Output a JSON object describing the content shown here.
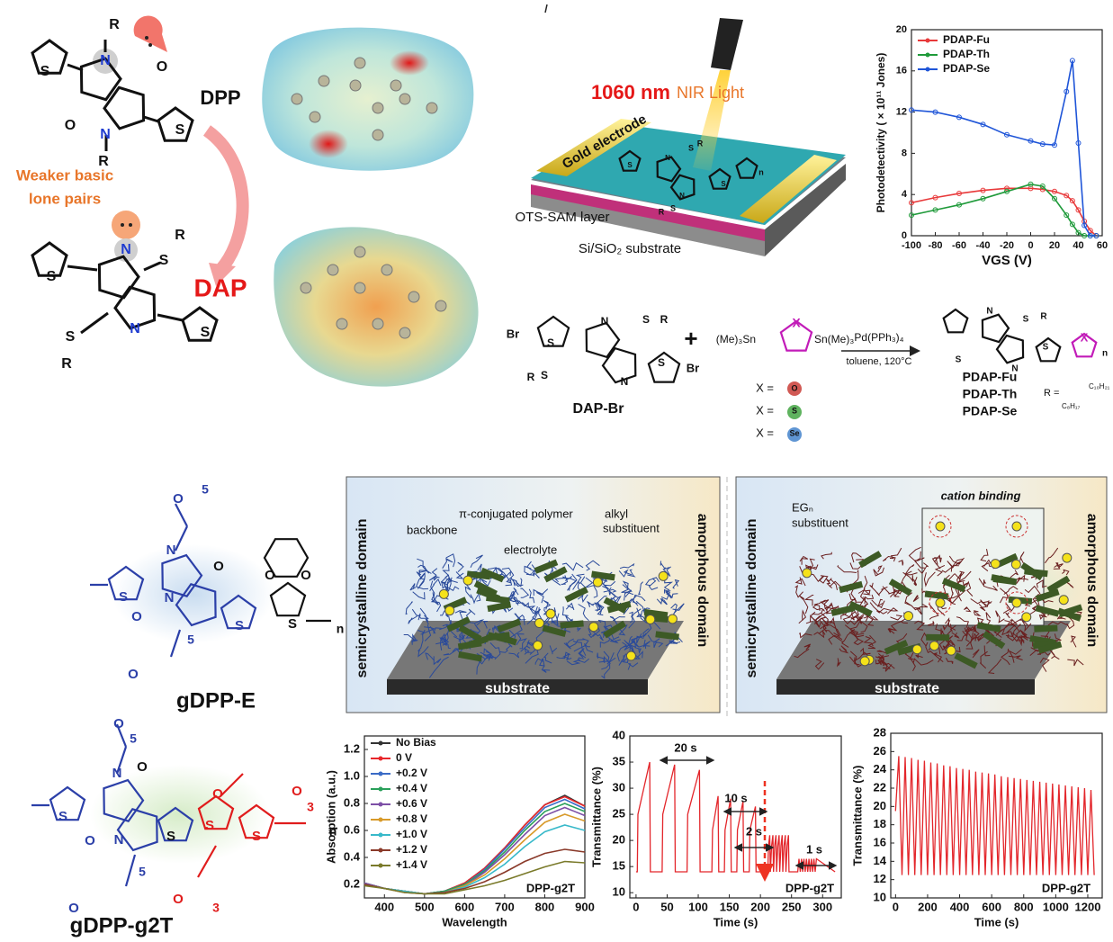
{
  "top": {
    "dpp": {
      "label": "DPP",
      "atoms": [
        "R",
        "N",
        "O",
        "O",
        "N",
        "R",
        "S",
        "S"
      ]
    },
    "dap": {
      "label": "DAP",
      "atoms": [
        "N",
        "S",
        "R",
        "S",
        "R",
        "N",
        "S",
        "S"
      ]
    },
    "lone_pairs": [
      "Weaker basic",
      "lone pairs"
    ],
    "device": {
      "light_nm": "1060 nm",
      "light_type": "NIR Light",
      "electrode": "Gold electrode",
      "layer": "OTS-SAM layer",
      "substrate": "Si/SiO₂ substrate",
      "atoms": [
        "S",
        "R",
        "N",
        "N",
        "S",
        "R",
        "S",
        "S",
        "n"
      ]
    }
  },
  "synthesis": {
    "monomer": {
      "label": "DAP-Br",
      "atoms": [
        "Br",
        "S",
        "N",
        "S",
        "R",
        "S",
        "R",
        "N",
        "S",
        "Br"
      ]
    },
    "plus": "+",
    "stannane": {
      "left": "(Me)₃Sn",
      "right": "Sn(Me)₃",
      "x": "X"
    },
    "x_options": [
      {
        "label": "X =",
        "atom": "O"
      },
      {
        "label": "X =",
        "atom": "S"
      },
      {
        "label": "X =",
        "atom": "Se"
      }
    ],
    "catalyst": "Pd(PPh₃)₄",
    "conditions": "toluene, 120°C",
    "product": {
      "atoms": [
        "N",
        "S",
        "R",
        "S",
        "N",
        "S",
        "X",
        "n"
      ],
      "names": [
        "PDAP-Fu",
        "PDAP-Th",
        "PDAP-Se"
      ],
      "r_label": "R =",
      "r_groups": [
        "C₁₀H₂₁",
        "C₈H₁₇"
      ]
    }
  },
  "polymers": {
    "gdpp_e": {
      "label": "gDPP-E",
      "atoms": [
        "O",
        "5",
        "N",
        "O",
        "O",
        "N",
        "5",
        "O",
        "S",
        "S",
        "O",
        "O",
        "S",
        "n"
      ]
    },
    "gdpp_g2t": {
      "label": "gDPP-g2T",
      "atoms": [
        "O",
        "5",
        "N",
        "O",
        "O",
        "N",
        "5",
        "O",
        "S",
        "S",
        "O",
        "O",
        "3",
        "S",
        "O",
        "3",
        "S",
        "n"
      ]
    }
  },
  "morphology": [
    {
      "left": "semicrystalline domain",
      "right": "amorphous domain",
      "substrate": "substrate",
      "labels": [
        "π-conjugated polymer",
        "backbone",
        "electrolyte",
        "alkyl",
        "substituent"
      ]
    },
    {
      "left": "semicrystalline domain",
      "right": "amorphous domain",
      "substrate": "substrate",
      "labels": [
        "EGₙ",
        "substituent",
        "cation binding"
      ]
    }
  ],
  "chart_data": [
    {
      "type": "line",
      "xlabel": "VGS (V)",
      "ylabel": "Photodetectivity ( × 10¹¹ Jones)",
      "x": [
        -100,
        -80,
        -60,
        -40,
        -20,
        0,
        10,
        20,
        30,
        35,
        40,
        45,
        50,
        55
      ],
      "series": [
        {
          "name": "PDAP-Fu",
          "color": "#e8393a",
          "values": [
            3.2,
            3.7,
            4.1,
            4.4,
            4.6,
            4.6,
            4.5,
            4.3,
            3.9,
            3.4,
            2.5,
            1.4,
            0.5,
            0
          ]
        },
        {
          "name": "PDAP-Th",
          "color": "#1f9a3a",
          "values": [
            2.0,
            2.5,
            3.0,
            3.6,
            4.3,
            5.0,
            4.8,
            3.6,
            2.0,
            1.1,
            0.3,
            0,
            0,
            0
          ]
        },
        {
          "name": "PDAP-Se",
          "color": "#1f55d8",
          "values": [
            12.2,
            12.0,
            11.5,
            10.8,
            9.8,
            9.2,
            8.9,
            8.8,
            14,
            17,
            9,
            1,
            0,
            0
          ]
        }
      ],
      "xlim": [
        -100,
        60
      ],
      "ylim": [
        0,
        20
      ],
      "xticks": [
        -100,
        -80,
        -60,
        -40,
        -20,
        0,
        20,
        40,
        60
      ],
      "yticks": [
        0,
        4,
        8,
        12,
        16,
        20
      ],
      "markers": true,
      "legend": "upper left"
    },
    {
      "type": "line",
      "xlabel": "Wavelength",
      "ylabel": "Absorption (a.u.)",
      "annotations": [
        "DPP-g2T"
      ],
      "x": [
        350,
        400,
        450,
        500,
        550,
        600,
        650,
        700,
        750,
        800,
        850,
        900
      ],
      "series": [
        {
          "name": "No Bias",
          "color": "#333333",
          "values": [
            0.21,
            0.17,
            0.15,
            0.13,
            0.15,
            0.21,
            0.32,
            0.47,
            0.64,
            0.79,
            0.86,
            0.78
          ]
        },
        {
          "name": "0 V",
          "color": "#e8262a",
          "values": [
            0.21,
            0.17,
            0.15,
            0.13,
            0.15,
            0.21,
            0.32,
            0.47,
            0.64,
            0.79,
            0.85,
            0.78
          ]
        },
        {
          "name": "+0.2 V",
          "color": "#3a6bc6",
          "values": [
            0.21,
            0.17,
            0.15,
            0.13,
            0.15,
            0.2,
            0.31,
            0.46,
            0.62,
            0.77,
            0.83,
            0.76
          ]
        },
        {
          "name": "+0.4 V",
          "color": "#2aa05a",
          "values": [
            0.21,
            0.17,
            0.15,
            0.13,
            0.15,
            0.2,
            0.3,
            0.44,
            0.6,
            0.74,
            0.8,
            0.74
          ]
        },
        {
          "name": "+0.6 V",
          "color": "#7d4fa6",
          "values": [
            0.21,
            0.17,
            0.15,
            0.13,
            0.14,
            0.19,
            0.29,
            0.42,
            0.57,
            0.71,
            0.77,
            0.71
          ]
        },
        {
          "name": "+0.8 V",
          "color": "#d89a2a",
          "values": [
            0.2,
            0.17,
            0.15,
            0.13,
            0.14,
            0.19,
            0.27,
            0.39,
            0.53,
            0.66,
            0.72,
            0.67
          ]
        },
        {
          "name": "+1.0 V",
          "color": "#38b9c9",
          "values": [
            0.2,
            0.17,
            0.15,
            0.13,
            0.14,
            0.18,
            0.25,
            0.35,
            0.48,
            0.59,
            0.64,
            0.6
          ]
        },
        {
          "name": "+1.2 V",
          "color": "#8a3a2a",
          "values": [
            0.2,
            0.17,
            0.14,
            0.13,
            0.14,
            0.17,
            0.22,
            0.29,
            0.37,
            0.43,
            0.46,
            0.44
          ]
        },
        {
          "name": "+1.4 V",
          "color": "#7a7a2a",
          "values": [
            0.19,
            0.17,
            0.14,
            0.13,
            0.13,
            0.16,
            0.19,
            0.23,
            0.28,
            0.33,
            0.37,
            0.36
          ]
        }
      ],
      "xlim": [
        350,
        900
      ],
      "ylim": [
        0.1,
        1.3
      ],
      "xticks": [
        400,
        500,
        600,
        700,
        800,
        900
      ],
      "yticks": [
        0.2,
        0.4,
        0.6,
        0.8,
        {
          "value": 1,
          "label": "1.0"
        },
        1.2
      ],
      "markers": false,
      "legend": "upper left"
    },
    {
      "type": "line",
      "xlabel": "Time (s)",
      "ylabel": "Transmittance (%)",
      "annotations": [
        "20 s",
        "10 s",
        "2 s",
        "1 s",
        "DPP-g2T"
      ],
      "x": [
        0,
        2,
        3,
        22,
        23,
        42,
        43,
        62,
        63,
        82,
        83,
        102,
        103,
        122,
        123,
        132,
        133,
        142,
        143,
        152,
        153,
        162,
        163,
        172,
        173,
        182,
        183,
        192,
        193,
        212,
        213,
        215,
        216,
        218,
        220,
        221,
        223,
        225,
        226,
        228,
        230,
        231,
        233,
        235,
        236,
        238,
        240,
        241,
        243,
        245,
        246,
        260,
        262,
        264,
        266,
        268,
        270,
        272,
        274,
        276,
        278,
        280,
        282,
        284,
        286,
        288,
        290,
        320
      ],
      "series": [
        {
          "name": "DPP-g2T",
          "color": "#e3262b",
          "values": [
            14,
            14,
            25,
            35,
            14,
            14,
            25,
            34.5,
            14,
            14,
            25,
            33.5,
            14,
            14,
            22,
            28.5,
            14,
            14,
            22,
            28,
            14,
            14,
            22,
            27.5,
            14,
            14,
            22,
            26.5,
            14,
            14,
            19,
            21,
            14,
            19,
            21,
            14,
            19,
            21,
            14,
            19,
            21,
            14,
            19,
            21,
            14,
            19,
            21,
            14,
            19,
            21,
            14,
            14,
            16.5,
            14,
            16.5,
            14,
            16.5,
            14,
            16.5,
            14,
            16.5,
            14,
            16.5,
            14,
            16.5,
            14,
            16.5,
            14
          ]
        }
      ],
      "xlim": [
        -10,
        330
      ],
      "ylim": [
        9,
        40
      ],
      "xticks": [
        0,
        50,
        100,
        150,
        200,
        250,
        300
      ],
      "yticks": [
        10,
        15,
        20,
        25,
        30,
        35,
        40
      ],
      "markers": false
    },
    {
      "type": "line",
      "xlabel": "Time (s)",
      "ylabel": "Transmittance (%)",
      "annotations": [
        "DPP-g2T"
      ],
      "x": [
        0,
        20,
        40,
        60,
        80,
        100,
        120,
        140,
        160,
        180,
        200,
        220,
        240,
        260,
        280,
        300,
        320,
        340,
        360,
        380,
        400,
        420,
        440,
        460,
        480,
        500,
        520,
        540,
        560,
        580,
        600,
        620,
        640,
        660,
        680,
        700,
        720,
        740,
        760,
        780,
        800,
        820,
        840,
        860,
        880,
        900,
        920,
        940,
        960,
        980,
        1000,
        1020,
        1040,
        1060,
        1080,
        1100,
        1120,
        1140,
        1160,
        1180,
        1200,
        1220,
        1240
      ],
      "series": [
        {
          "name": "DPP-g2T",
          "color": "#e3262b",
          "values": [
            19.5,
            25.5,
            12.5,
            25.4,
            12.5,
            25.3,
            12.5,
            25.1,
            12.5,
            25.0,
            12.5,
            24.8,
            12.5,
            24.7,
            12.5,
            24.5,
            12.5,
            24.4,
            12.5,
            24.2,
            12.5,
            24.1,
            12.5,
            24.0,
            12.5,
            23.8,
            12.5,
            23.7,
            12.5,
            23.6,
            12.5,
            23.5,
            12.5,
            23.3,
            12.5,
            23.2,
            12.5,
            23.1,
            12.5,
            23.0,
            12.5,
            22.9,
            12.5,
            22.8,
            12.5,
            22.7,
            12.5,
            22.6,
            12.5,
            22.5,
            12.5,
            22.4,
            12.5,
            22.3,
            12.5,
            22.2,
            12.5,
            22.1,
            12.5,
            22.0,
            12.5,
            21.8,
            12.5
          ]
        }
      ],
      "xlim": [
        -30,
        1290
      ],
      "ylim": [
        10,
        28
      ],
      "xticks": [
        0,
        200,
        400,
        600,
        800,
        1000,
        1200
      ],
      "yticks": [
        10,
        12,
        14,
        16,
        18,
        20,
        22,
        24,
        26,
        28
      ],
      "markers": false
    }
  ]
}
